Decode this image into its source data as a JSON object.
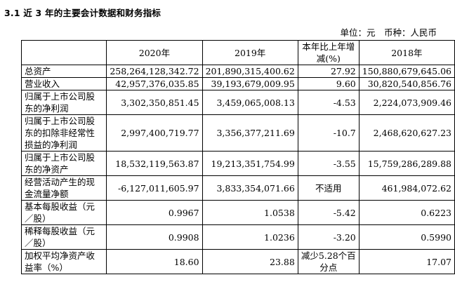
{
  "heading": "3.1 近 3 年的主要会计数据和财务指标",
  "unit_line": "单位：元　币种：人民币",
  "columns": [
    "",
    "2020年",
    "2019年",
    "本年比上年增减(%)",
    "2018年"
  ],
  "rows": [
    {
      "label": "总资产",
      "y2020": "258,264,128,342.72",
      "y2019": "201,890,315,400.62",
      "change": "27.92",
      "y2018": "150,880,679,645.06"
    },
    {
      "label": "营业收入",
      "y2020": "42,957,376,035.85",
      "y2019": "39,193,679,009.95",
      "change": "9.60",
      "y2018": "30,820,540,856.76"
    },
    {
      "label": "归属于上市公司股东的净利润",
      "y2020": "3,302,350,851.45",
      "y2019": "3,459,065,008.13",
      "change": "-4.53",
      "y2018": "2,224,073,909.46"
    },
    {
      "label": "归属于上市公司股东的扣除非经常性损益的净利润",
      "y2020": "2,997,400,719.77",
      "y2019": "3,356,377,211.69",
      "change": "-10.7",
      "y2018": "2,468,620,627.23"
    },
    {
      "label": "归属于上市公司股东的净资产",
      "y2020": "18,532,119,563.87",
      "y2019": "19,213,351,754.99",
      "change": "-3.55",
      "y2018": "15,759,286,289.88"
    },
    {
      "label": "经营活动产生的现金流量净额",
      "y2020": "-6,127,011,605.97",
      "y2019": "3,833,354,071.66",
      "change": "不适用",
      "y2018": "461,984,072.62"
    },
    {
      "label": "基本每股收益（元／股）",
      "y2020": "0.9967",
      "y2019": "1.0538",
      "change": "-5.42",
      "y2018": "0.6223"
    },
    {
      "label": "稀释每股收益（元／股）",
      "y2020": "0.9908",
      "y2019": "1.0236",
      "change": "-3.20",
      "y2018": "0.5990"
    },
    {
      "label": "加权平均净资产收益率（%）",
      "y2020": "18.60",
      "y2019": "23.88",
      "change": "减少5.28个百分点",
      "y2018": "17.07"
    }
  ]
}
